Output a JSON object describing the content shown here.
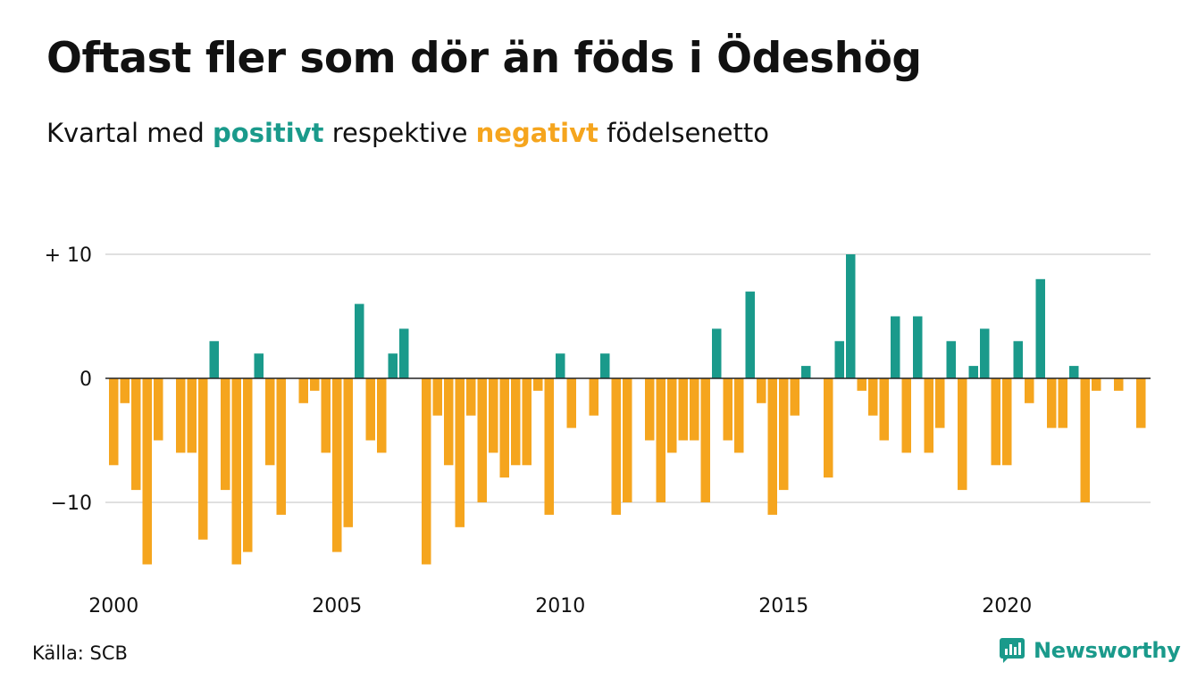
{
  "colors": {
    "positive": "#1a9a8b",
    "negative": "#f5a51e",
    "grid": "#e0e0e0",
    "zero_line": "#222222",
    "text": "#111111"
  },
  "header": {
    "title": "Oftast fler som dör än föds i Ödeshög",
    "subtitle_pre": "Kvartal med",
    "subtitle_positive": "positivt",
    "subtitle_mid": "respektive",
    "subtitle_negative": "negativt",
    "subtitle_post": "födelsenetto"
  },
  "footer": {
    "source": "Källa: SCB",
    "brand": "Newsworthy",
    "brand_icon": "chart-bubble-icon"
  },
  "chart_data": {
    "type": "bar",
    "x_start": 2000,
    "periods_per_year": 4,
    "y_ticks": [
      10,
      0,
      -10
    ],
    "y_tick_labels": [
      "+ 10",
      "0",
      "−10"
    ],
    "x_ticks": [
      2000,
      2005,
      2010,
      2015,
      2020
    ],
    "x_tick_labels": [
      "2000",
      "2005",
      "2010",
      "2015",
      "2020"
    ],
    "ylim": [
      -15,
      10
    ],
    "grid": true,
    "values": [
      -7,
      -2,
      -9,
      -15,
      -5,
      0,
      -6,
      -6,
      -13,
      3,
      -9,
      -15,
      -14,
      2,
      -7,
      -11,
      0,
      -2,
      -1,
      -6,
      -14,
      -12,
      6,
      -5,
      -6,
      2,
      4,
      0,
      -15,
      -3,
      -7,
      -12,
      -3,
      -10,
      -6,
      -8,
      -7,
      -7,
      -1,
      -11,
      2,
      -4,
      0,
      -3,
      2,
      -11,
      -10,
      0,
      -5,
      -10,
      -6,
      -5,
      -5,
      -10,
      4,
      -5,
      -6,
      7,
      -2,
      -11,
      -9,
      -3,
      1,
      0,
      -8,
      3,
      10,
      -1,
      -3,
      -5,
      5,
      -6,
      5,
      -6,
      -4,
      3,
      -9,
      1,
      4,
      -7,
      -7,
      3,
      -2,
      8,
      -4,
      -4,
      1,
      -10,
      -1,
      0,
      -1,
      0,
      -4
    ]
  }
}
